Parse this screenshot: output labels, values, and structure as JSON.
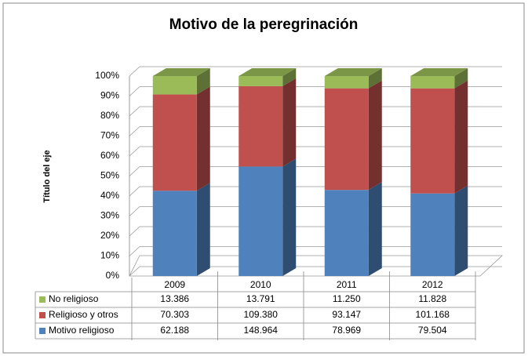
{
  "chart_data": {
    "type": "stacked100_bar3d",
    "title": "Motivo de la peregrinación",
    "y_label": "Título del eje",
    "categories": [
      "2009",
      "2010",
      "2011",
      "2012"
    ],
    "series": [
      {
        "name": "Motivo religioso",
        "color": "#4f81bd",
        "values": [
          62188,
          148964,
          78969,
          79504
        ],
        "value_labels": [
          "62.188",
          "148.964",
          "78.969",
          "79.504"
        ]
      },
      {
        "name": "Religioso y otros",
        "color": "#c0504d",
        "values": [
          70303,
          109380,
          93147,
          101168
        ],
        "value_labels": [
          "70.303",
          "109.380",
          "93.147",
          "101.168"
        ]
      },
      {
        "name": "No religioso",
        "color": "#9bbb59",
        "values": [
          13386,
          13791,
          11250,
          11828
        ],
        "value_labels": [
          "13.386",
          "13.791",
          "11.250",
          "11.828"
        ]
      }
    ],
    "ylim": [
      0,
      100
    ],
    "yticks": [
      {
        "value": 0,
        "label": "0%"
      },
      {
        "value": 10,
        "label": "10%"
      },
      {
        "value": 20,
        "label": "20%"
      },
      {
        "value": 30,
        "label": "30%"
      },
      {
        "value": 40,
        "label": "40%"
      },
      {
        "value": 50,
        "label": "50%"
      },
      {
        "value": 60,
        "label": "60%"
      },
      {
        "value": 70,
        "label": "70%"
      },
      {
        "value": 80,
        "label": "80%"
      },
      {
        "value": 90,
        "label": "90%"
      },
      {
        "value": 100,
        "label": "100%"
      }
    ],
    "grid": true
  }
}
